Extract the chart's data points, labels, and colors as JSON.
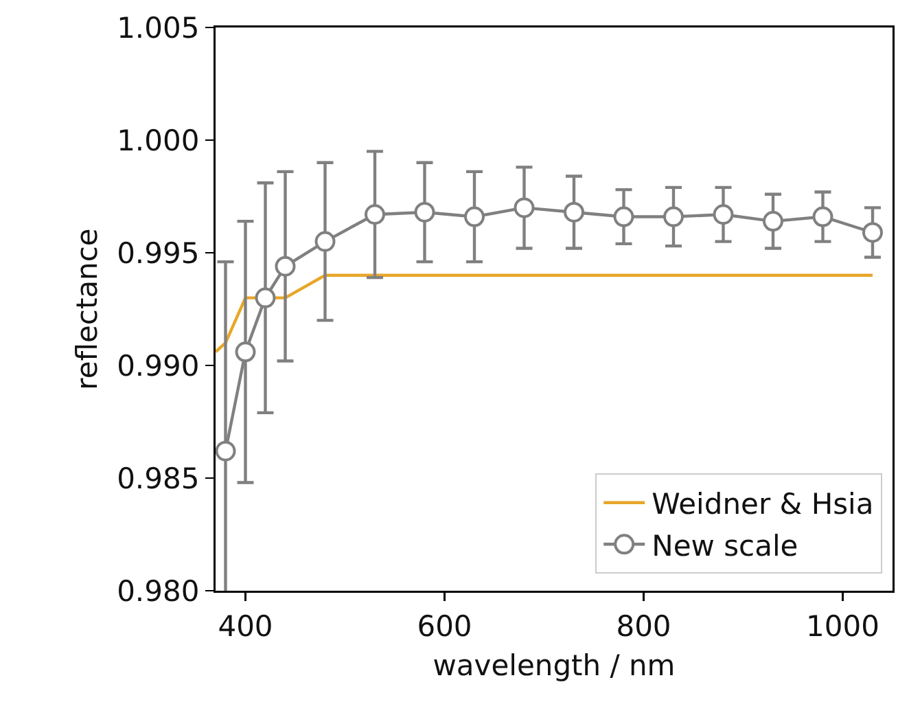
{
  "chart_data": {
    "type": "line",
    "xlabel": "wavelength / nm",
    "ylabel": "reflectance",
    "xlim": [
      370,
      1050
    ],
    "xticks": [
      400,
      600,
      800,
      1000
    ],
    "ylim": [
      0.98,
      1.005
    ],
    "yticks": [
      {
        "value": 0.98,
        "label": "0.980"
      },
      {
        "value": 0.985,
        "label": "0.985"
      },
      {
        "value": 0.99,
        "label": "0.990"
      },
      {
        "value": 0.995,
        "label": "0.995"
      },
      {
        "value": 1.0,
        "label": "1.000"
      },
      {
        "value": 1.005,
        "label": "1.005"
      }
    ],
    "grid": false,
    "legend": "bottom right",
    "series": [
      {
        "name": "Weidner & Hsia",
        "color": "#e8a628",
        "marker": "none",
        "x": [
          370,
          380,
          400,
          440,
          480,
          1030
        ],
        "values": [
          0.9906,
          0.991,
          0.993,
          0.993,
          0.994,
          0.994
        ]
      },
      {
        "name": "New scale",
        "color": "#808080",
        "marker": "circle",
        "x": [
          380,
          400,
          420,
          440,
          480,
          530,
          580,
          630,
          680,
          730,
          780,
          830,
          880,
          930,
          980,
          1030
        ],
        "values": [
          0.9862,
          0.9906,
          0.993,
          0.9944,
          0.9955,
          0.9967,
          0.9968,
          0.9966,
          0.997,
          0.9968,
          0.9966,
          0.9966,
          0.9967,
          0.9964,
          0.9966,
          0.9959
        ],
        "errors": [
          0.0084,
          0.0058,
          0.0051,
          0.0042,
          0.0035,
          0.0028,
          0.0022,
          0.002,
          0.0018,
          0.0016,
          0.0012,
          0.0013,
          0.0012,
          0.0012,
          0.0011,
          0.0011
        ]
      }
    ]
  }
}
